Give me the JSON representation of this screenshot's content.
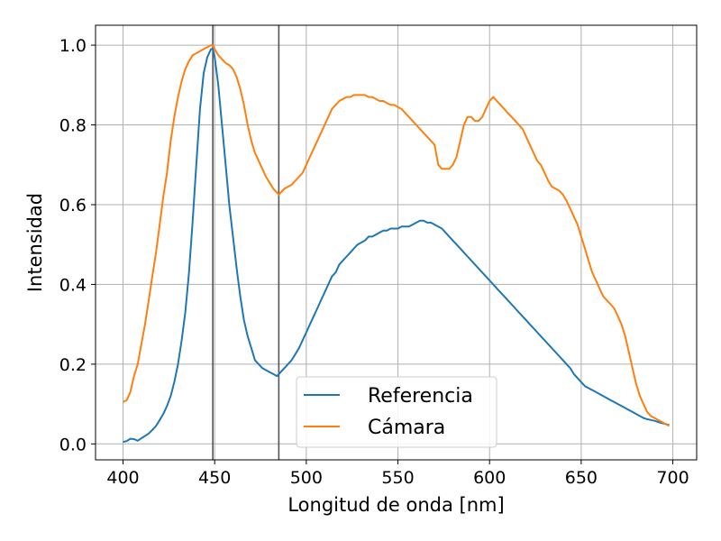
{
  "chart_data": {
    "type": "line",
    "xlabel": "Longitud de onda [nm]",
    "ylabel": "Intensidad",
    "xlim": [
      385,
      713
    ],
    "ylim": [
      -0.04,
      1.05
    ],
    "xticks": [
      400,
      450,
      500,
      550,
      600,
      650,
      700
    ],
    "yticks": [
      0.0,
      0.2,
      0.4,
      0.6,
      0.8,
      1.0
    ],
    "xtick_labels": [
      "400",
      "450",
      "500",
      "550",
      "600",
      "650",
      "700"
    ],
    "ytick_labels": [
      "0.0",
      "0.2",
      "0.4",
      "0.6",
      "0.8",
      "1.0"
    ],
    "grid": true,
    "legend_position": "lower-center",
    "vlines": [
      449,
      485
    ],
    "vline_color": "#555555",
    "series": [
      {
        "name": "Referencia",
        "color": "#1f77b4",
        "x": [
          400,
          402,
          404,
          406,
          408,
          410,
          412,
          414,
          416,
          418,
          420,
          422,
          424,
          426,
          428,
          430,
          432,
          434,
          436,
          438,
          440,
          442,
          444,
          446,
          448,
          449,
          450,
          452,
          454,
          456,
          458,
          460,
          462,
          464,
          466,
          468,
          470,
          472,
          474,
          476,
          478,
          480,
          482,
          484,
          485,
          486,
          488,
          490,
          492,
          494,
          496,
          498,
          500,
          502,
          504,
          506,
          508,
          510,
          512,
          514,
          516,
          518,
          520,
          522,
          524,
          526,
          528,
          530,
          532,
          534,
          536,
          538,
          540,
          542,
          544,
          546,
          548,
          550,
          552,
          554,
          556,
          558,
          560,
          562,
          564,
          566,
          568,
          570,
          572,
          574,
          576,
          578,
          580,
          582,
          584,
          586,
          588,
          590,
          592,
          594,
          596,
          598,
          600,
          602,
          604,
          606,
          608,
          610,
          612,
          614,
          616,
          618,
          620,
          622,
          624,
          626,
          628,
          630,
          632,
          634,
          636,
          638,
          640,
          642,
          644,
          646,
          648,
          650,
          652,
          654,
          656,
          658,
          660,
          662,
          664,
          666,
          668,
          670,
          672,
          674,
          676,
          678,
          680,
          682,
          684,
          686,
          688,
          690,
          692,
          694,
          696,
          698
        ],
        "y": [
          0.005,
          0.007,
          0.013,
          0.012,
          0.008,
          0.014,
          0.02,
          0.026,
          0.035,
          0.045,
          0.06,
          0.075,
          0.095,
          0.12,
          0.155,
          0.2,
          0.26,
          0.33,
          0.43,
          0.56,
          0.7,
          0.84,
          0.93,
          0.97,
          0.99,
          0.99,
          0.97,
          0.9,
          0.8,
          0.7,
          0.6,
          0.52,
          0.44,
          0.37,
          0.31,
          0.27,
          0.24,
          0.21,
          0.2,
          0.19,
          0.185,
          0.18,
          0.175,
          0.17,
          0.175,
          0.18,
          0.19,
          0.2,
          0.21,
          0.225,
          0.24,
          0.26,
          0.28,
          0.3,
          0.32,
          0.34,
          0.36,
          0.38,
          0.4,
          0.42,
          0.43,
          0.45,
          0.46,
          0.47,
          0.48,
          0.49,
          0.5,
          0.505,
          0.51,
          0.52,
          0.52,
          0.525,
          0.53,
          0.535,
          0.535,
          0.54,
          0.54,
          0.54,
          0.545,
          0.545,
          0.545,
          0.55,
          0.555,
          0.56,
          0.56,
          0.555,
          0.555,
          0.55,
          0.545,
          0.54,
          0.53,
          0.52,
          0.51,
          0.5,
          0.49,
          0.48,
          0.47,
          0.46,
          0.45,
          0.44,
          0.43,
          0.42,
          0.41,
          0.4,
          0.39,
          0.38,
          0.37,
          0.36,
          0.35,
          0.34,
          0.33,
          0.32,
          0.31,
          0.3,
          0.29,
          0.28,
          0.27,
          0.26,
          0.25,
          0.24,
          0.23,
          0.22,
          0.21,
          0.2,
          0.19,
          0.175,
          0.165,
          0.155,
          0.145,
          0.14,
          0.135,
          0.13,
          0.125,
          0.12,
          0.115,
          0.11,
          0.105,
          0.1,
          0.095,
          0.09,
          0.085,
          0.08,
          0.075,
          0.07,
          0.065,
          0.062,
          0.06,
          0.058,
          0.055,
          0.052,
          0.05,
          0.047
        ]
      },
      {
        "name": "Cámara",
        "color": "#ff7f0e",
        "x": [
          400,
          402,
          404,
          406,
          408,
          410,
          412,
          414,
          416,
          418,
          420,
          422,
          424,
          426,
          428,
          430,
          432,
          434,
          436,
          438,
          440,
          442,
          444,
          446,
          448,
          449,
          450,
          452,
          454,
          456,
          458,
          460,
          462,
          464,
          466,
          468,
          470,
          472,
          474,
          476,
          478,
          480,
          482,
          484,
          485,
          486,
          488,
          490,
          492,
          494,
          496,
          498,
          500,
          502,
          504,
          506,
          508,
          510,
          512,
          514,
          516,
          518,
          520,
          522,
          524,
          526,
          528,
          530,
          532,
          534,
          536,
          538,
          540,
          542,
          544,
          546,
          548,
          550,
          552,
          554,
          556,
          558,
          560,
          562,
          564,
          566,
          568,
          570,
          572,
          574,
          576,
          578,
          580,
          582,
          584,
          586,
          588,
          590,
          592,
          594,
          596,
          598,
          600,
          602,
          604,
          606,
          608,
          610,
          612,
          614,
          616,
          618,
          620,
          622,
          624,
          626,
          628,
          630,
          632,
          634,
          636,
          638,
          640,
          642,
          644,
          646,
          648,
          650,
          652,
          654,
          656,
          658,
          660,
          662,
          664,
          666,
          668,
          670,
          672,
          674,
          676,
          678,
          680,
          682,
          684,
          686,
          688,
          690,
          692,
          694,
          696,
          698
        ],
        "y": [
          0.105,
          0.11,
          0.13,
          0.17,
          0.2,
          0.25,
          0.3,
          0.36,
          0.42,
          0.48,
          0.55,
          0.62,
          0.68,
          0.76,
          0.82,
          0.87,
          0.91,
          0.94,
          0.96,
          0.975,
          0.98,
          0.985,
          0.99,
          0.995,
          1.0,
          1.0,
          0.99,
          0.975,
          0.965,
          0.955,
          0.95,
          0.94,
          0.92,
          0.89,
          0.85,
          0.8,
          0.76,
          0.73,
          0.71,
          0.69,
          0.67,
          0.655,
          0.64,
          0.63,
          0.625,
          0.63,
          0.64,
          0.645,
          0.65,
          0.66,
          0.67,
          0.68,
          0.7,
          0.72,
          0.74,
          0.76,
          0.78,
          0.8,
          0.82,
          0.84,
          0.85,
          0.86,
          0.865,
          0.87,
          0.87,
          0.875,
          0.875,
          0.875,
          0.875,
          0.87,
          0.87,
          0.865,
          0.86,
          0.86,
          0.855,
          0.85,
          0.85,
          0.845,
          0.84,
          0.83,
          0.82,
          0.81,
          0.8,
          0.79,
          0.78,
          0.77,
          0.76,
          0.75,
          0.7,
          0.69,
          0.69,
          0.69,
          0.7,
          0.72,
          0.76,
          0.8,
          0.82,
          0.82,
          0.81,
          0.81,
          0.82,
          0.84,
          0.86,
          0.87,
          0.86,
          0.85,
          0.84,
          0.83,
          0.82,
          0.81,
          0.8,
          0.79,
          0.77,
          0.75,
          0.73,
          0.71,
          0.7,
          0.68,
          0.66,
          0.645,
          0.64,
          0.635,
          0.625,
          0.61,
          0.59,
          0.57,
          0.55,
          0.52,
          0.49,
          0.46,
          0.43,
          0.41,
          0.39,
          0.37,
          0.36,
          0.35,
          0.34,
          0.32,
          0.3,
          0.27,
          0.23,
          0.19,
          0.15,
          0.12,
          0.1,
          0.08,
          0.07,
          0.065,
          0.06,
          0.055,
          0.05,
          0.045
        ]
      }
    ]
  }
}
